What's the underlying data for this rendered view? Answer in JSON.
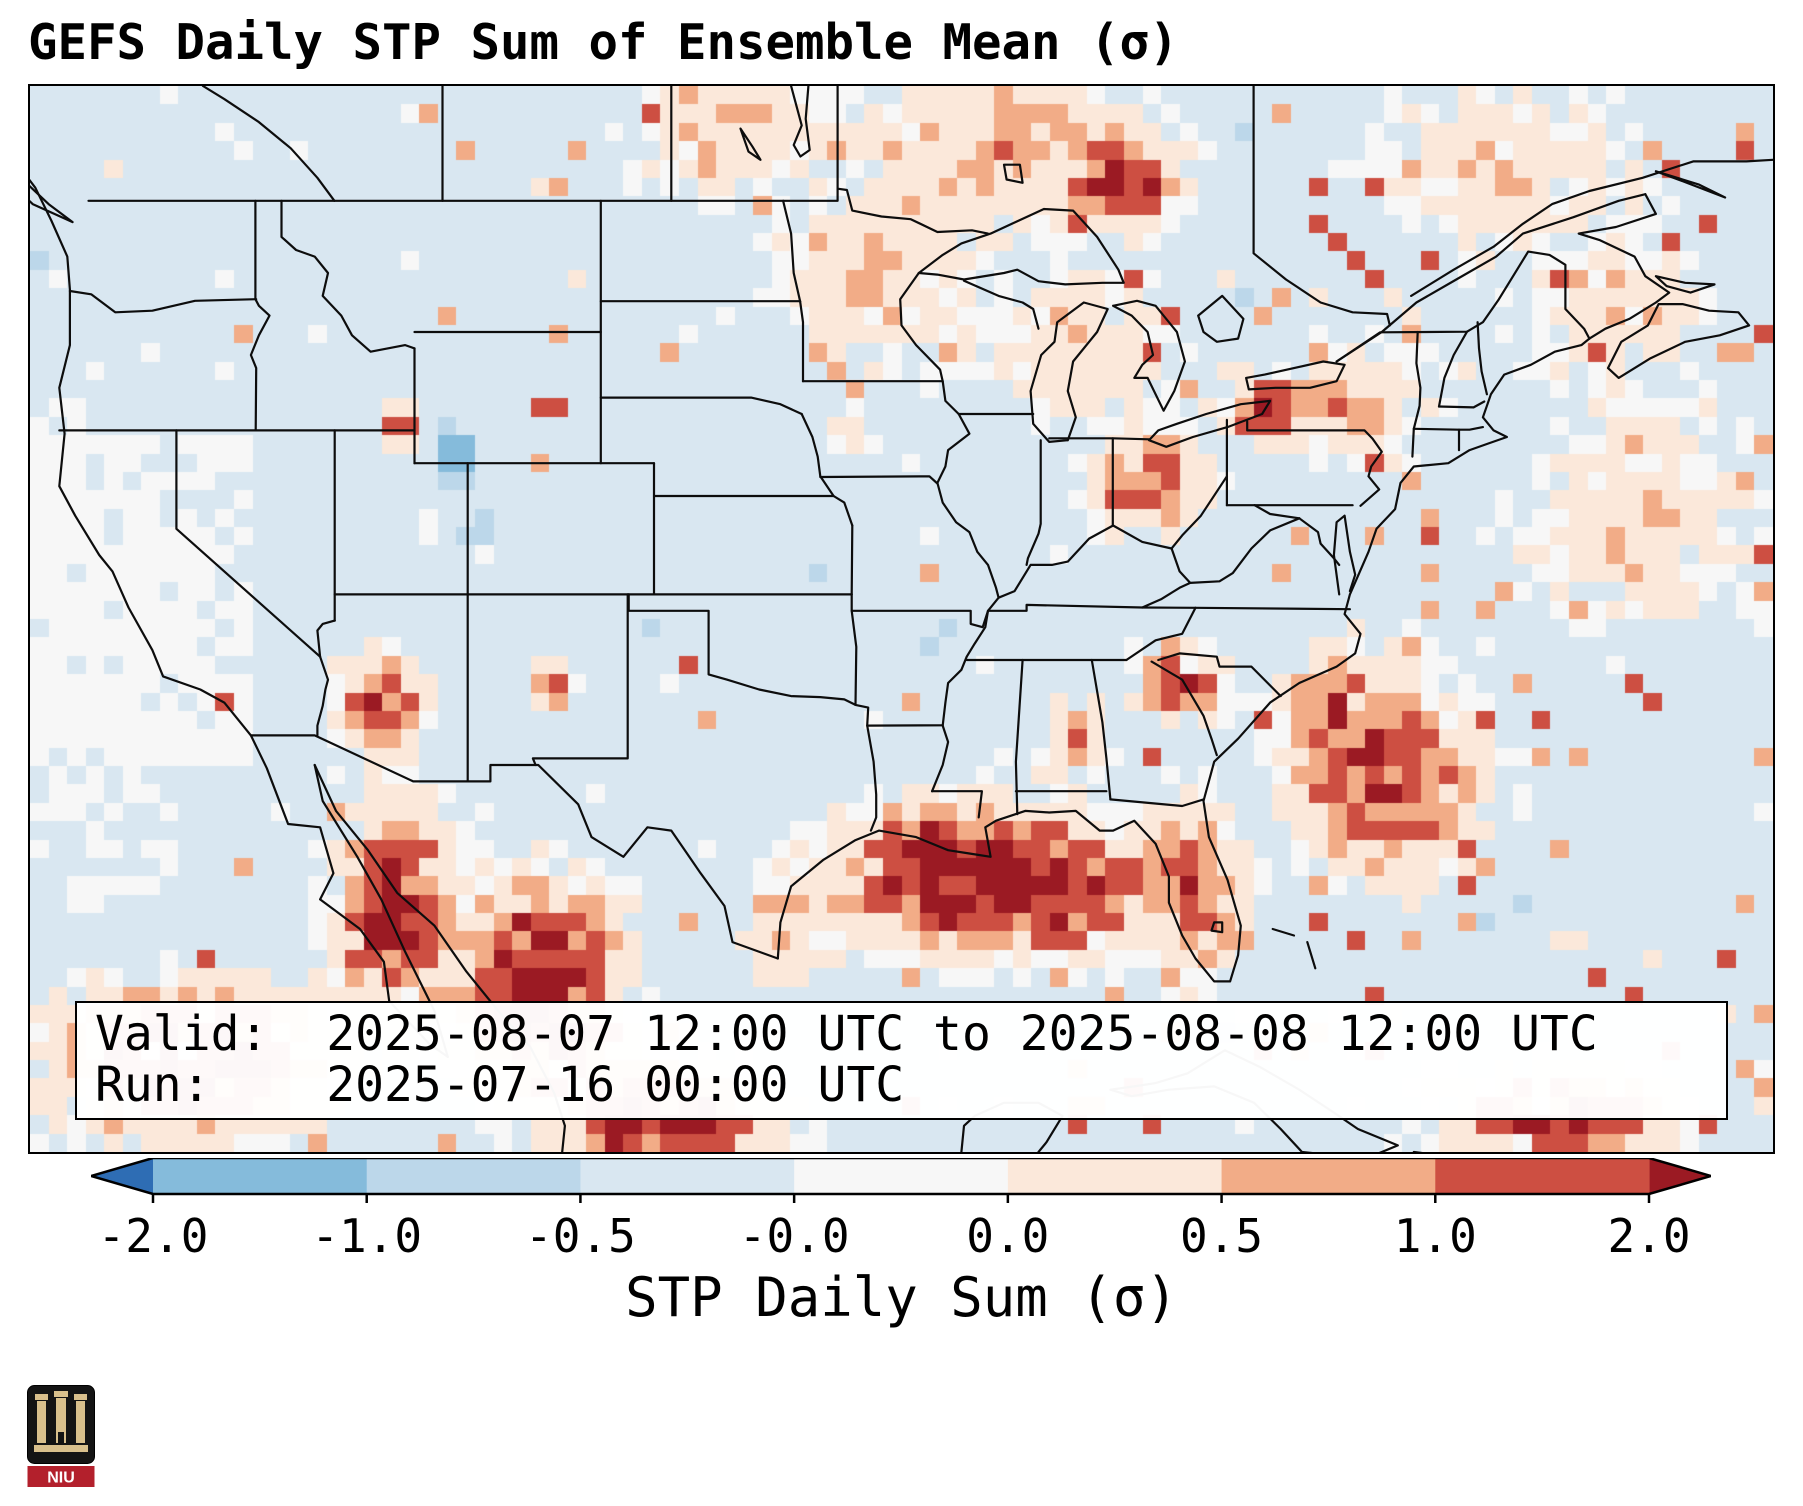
{
  "title": "GEFS Daily STP Sum of Ensemble Mean (σ)",
  "info_box": {
    "valid_label": "Valid:",
    "valid_value": "2025-08-07 12:00 UTC to 2025-08-08 12:00 UTC",
    "run_label": "Run:",
    "run_value": "2025-07-16 00:00 UTC"
  },
  "logo": {
    "text": "NIU"
  },
  "chart_data": {
    "type": "heatmap",
    "title": "GEFS Daily STP Sum of Ensemble Mean (σ)",
    "notes": "Gridded GEFS ensemble-mean daily Significant Tornado Parameter sum in standardized anomaly (sigma) units over CONUS, southern Canada and Mexico. Strong positive anomalies (red) over the Gulf Coast, Florida and southeast Atlantic waters, mainland Mexico / Baja California / tropical east Pacific, southeast Arizona, central Ontario, the Ohio Valley, western New York and the Georgia/Carolina area. Slightly negative background (light blue) elsewhere; near-zero masked white region over California/Nevada; small negative pockets near the Utah/Wyoming border.",
    "colorbar": {
      "label": "STP Daily Sum (σ)",
      "tick_labels": [
        "-2.0",
        "-1.0",
        "-0.5",
        "-0.0",
        "0.0",
        "0.5",
        "1.0",
        "2.0"
      ],
      "segment_colors": [
        "#85bbdb",
        "#bcd7ea",
        "#d9e7f1",
        "#f7f7f7",
        "#fbe8da",
        "#f2ac87",
        "#cd4f42"
      ],
      "under_color": "#2e6db4",
      "over_color": "#9b1a23",
      "orientation": "horizontal"
    },
    "color_scale": {
      "thresholds": [
        -2,
        -1,
        -0.5,
        -0.05,
        0.05,
        0.5,
        1,
        2
      ],
      "colors": [
        "#2e6db4",
        "#85bbdb",
        "#bcd7ea",
        "#d9e7f1",
        "#f7f7f7",
        "#fbe8da",
        "#f2ac87",
        "#cd4f42",
        "#9b1a23"
      ]
    },
    "map_extent": {
      "lon_min": -125.5,
      "lon_max": -60,
      "lat_min": 20,
      "lat_max": 52.5
    },
    "grid": {
      "cols": 94,
      "rows": 58,
      "base_value": -0.2,
      "seed": 1337
    },
    "speckle": {
      "base": 0.012,
      "boost_north": 0.03,
      "boost_east": 0.028,
      "white": 0.015,
      "negative": 0.01
    },
    "hotspots": [
      {
        "name": "ontario-hotspot",
        "lon": -84.5,
        "lat": 49.6,
        "sx": 1.6,
        "sy": 1.1,
        "amp": 2.1
      },
      {
        "name": "ontario-broad",
        "lon": -89.0,
        "lat": 50.5,
        "sx": 4.5,
        "sy": 2.0,
        "amp": 0.85
      },
      {
        "name": "manitoba",
        "lon": -99.5,
        "lat": 51.0,
        "sx": 3.0,
        "sy": 1.6,
        "amp": 0.7
      },
      {
        "name": "upper-midwest",
        "lon": -93.5,
        "lat": 46.5,
        "sx": 3.2,
        "sy": 2.2,
        "amp": 0.65
      },
      {
        "name": "wisconsin-michigan",
        "lon": -86.0,
        "lat": 44.5,
        "sx": 2.6,
        "sy": 1.8,
        "amp": 0.75
      },
      {
        "name": "ohio-valley",
        "lon": -83.5,
        "lat": 40.3,
        "sx": 1.7,
        "sy": 1.3,
        "amp": 1.5
      },
      {
        "name": "lake-erie-new-york",
        "lon": -79.2,
        "lat": 42.6,
        "sx": 1.3,
        "sy": 0.9,
        "amp": 1.8
      },
      {
        "name": "new-york-broad",
        "lon": -76.0,
        "lat": 42.7,
        "sx": 2.2,
        "sy": 1.4,
        "amp": 0.8
      },
      {
        "name": "quebec",
        "lon": -70.0,
        "lat": 49.8,
        "sx": 4.0,
        "sy": 2.0,
        "amp": 0.7
      },
      {
        "name": "georgia-carolinas",
        "lon": -82.3,
        "lat": 34.3,
        "sx": 1.3,
        "sy": 1.0,
        "amp": 1.8
      },
      {
        "name": "alabama",
        "lon": -86.3,
        "lat": 32.6,
        "sx": 1.1,
        "sy": 0.9,
        "amp": 1.1
      },
      {
        "name": "gulf-coast-band",
        "lon": -89.0,
        "lat": 28.2,
        "sx": 4.6,
        "sy": 1.7,
        "amp": 3.1
      },
      {
        "name": "louisiana-coast",
        "lon": -92.0,
        "lat": 29.6,
        "sx": 1.8,
        "sy": 0.9,
        "amp": 1.6
      },
      {
        "name": "florida-peninsula",
        "lon": -81.5,
        "lat": 27.8,
        "sx": 1.3,
        "sy": 2.2,
        "amp": 1.4
      },
      {
        "name": "southeast-atlantic",
        "lon": -74.5,
        "lat": 31.3,
        "sx": 2.8,
        "sy": 2.4,
        "amp": 2.0
      },
      {
        "name": "carolina-offshore",
        "lon": -76.5,
        "lat": 33.8,
        "sx": 1.6,
        "sy": 1.2,
        "amp": 1.2
      },
      {
        "name": "caribbean-east",
        "lon": -68.0,
        "lat": 21.0,
        "sx": 3.5,
        "sy": 1.2,
        "amp": 2.0
      },
      {
        "name": "south-texas-coast",
        "lon": -97.2,
        "lat": 26.8,
        "sx": 1.1,
        "sy": 1.4,
        "amp": 0.9
      },
      {
        "name": "mexico-mainland",
        "lon": -106.3,
        "lat": 25.0,
        "sx": 2.4,
        "sy": 2.6,
        "amp": 2.9
      },
      {
        "name": "mexico-south",
        "lon": -101.5,
        "lat": 20.8,
        "sx": 3.0,
        "sy": 1.4,
        "amp": 2.4
      },
      {
        "name": "baja-gulf-california",
        "lon": -111.8,
        "lat": 27.5,
        "sx": 1.7,
        "sy": 2.6,
        "amp": 2.4
      },
      {
        "name": "pacific-southwest",
        "lon": -119.5,
        "lat": 22.8,
        "sx": 4.0,
        "sy": 1.8,
        "amp": 2.6
      },
      {
        "name": "arizona",
        "lon": -112.3,
        "lat": 33.7,
        "sx": 1.3,
        "sy": 1.2,
        "amp": 2.0
      },
      {
        "name": "new-mexico-spot",
        "lon": -105.9,
        "lat": 34.2,
        "sx": 0.6,
        "sy": 0.6,
        "amp": 1.6
      },
      {
        "name": "utah-idaho-spot",
        "lon": -111.6,
        "lat": 42.2,
        "sx": 0.6,
        "sy": 0.55,
        "amp": 1.9
      },
      {
        "name": "iowa-spot",
        "lon": -94.6,
        "lat": 41.9,
        "sx": 0.6,
        "sy": 0.5,
        "amp": 1.0
      },
      {
        "name": "maritimes",
        "lon": -66.0,
        "lat": 45.5,
        "sx": 3.0,
        "sy": 2.0,
        "amp": 0.5
      },
      {
        "name": "atlantic-northeast",
        "lon": -65.0,
        "lat": 39.0,
        "sx": 4.0,
        "sy": 3.0,
        "amp": 0.5
      },
      {
        "name": "wyoming-blue",
        "lon": -109.6,
        "lat": 41.2,
        "sx": 0.7,
        "sy": 0.8,
        "amp": -1.6
      },
      {
        "name": "colorado-blue",
        "lon": -108.8,
        "lat": 39.0,
        "sx": 0.5,
        "sy": 0.5,
        "amp": -1.1
      }
    ],
    "white_zones": [
      {
        "name": "california-nevada",
        "lon_min": -125.5,
        "lon_max": -116.8,
        "lat_min": 31.8,
        "lat_max": 41.8,
        "prob": 0.78
      },
      {
        "name": "pacific-offshore",
        "lon_min": -125.5,
        "lon_max": -120.0,
        "lat_min": 27.5,
        "lat_max": 33.5,
        "prob": 0.4
      },
      {
        "name": "pacific-west-edge",
        "lon_min": -125.5,
        "lon_max": -123.5,
        "lat_min": 33.0,
        "lat_max": 43.0,
        "prob": 0.5
      }
    ]
  }
}
